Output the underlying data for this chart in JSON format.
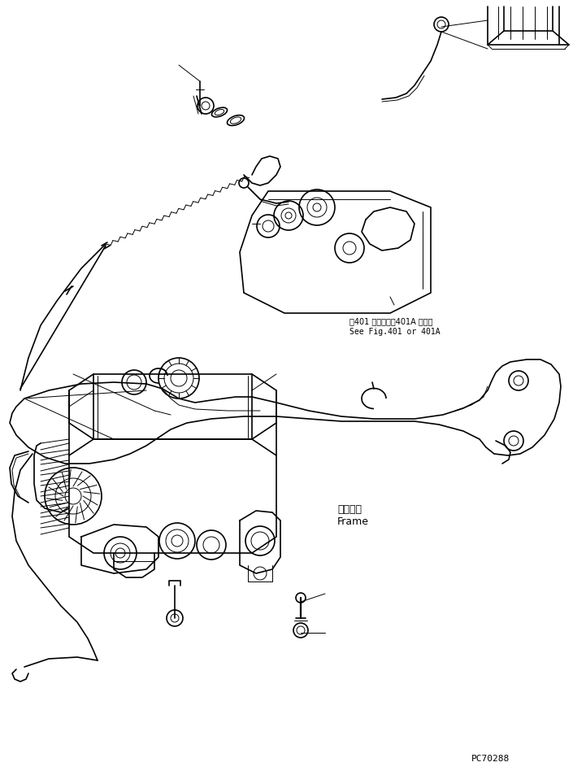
{
  "background_color": "#ffffff",
  "line_color": "#000000",
  "fig_width": 7.21,
  "fig_height": 9.48,
  "dpi": 100,
  "annotation_1_jp": "第401 図または第401A 図参照",
  "annotation_1_en": "See Fig.401 or 401A",
  "annotation_frame_jp": "フレーム",
  "annotation_frame_en": "Frame",
  "part_number": "PC70288",
  "lw_main": 1.2,
  "lw_thin": 0.7,
  "lw_thick": 1.6
}
